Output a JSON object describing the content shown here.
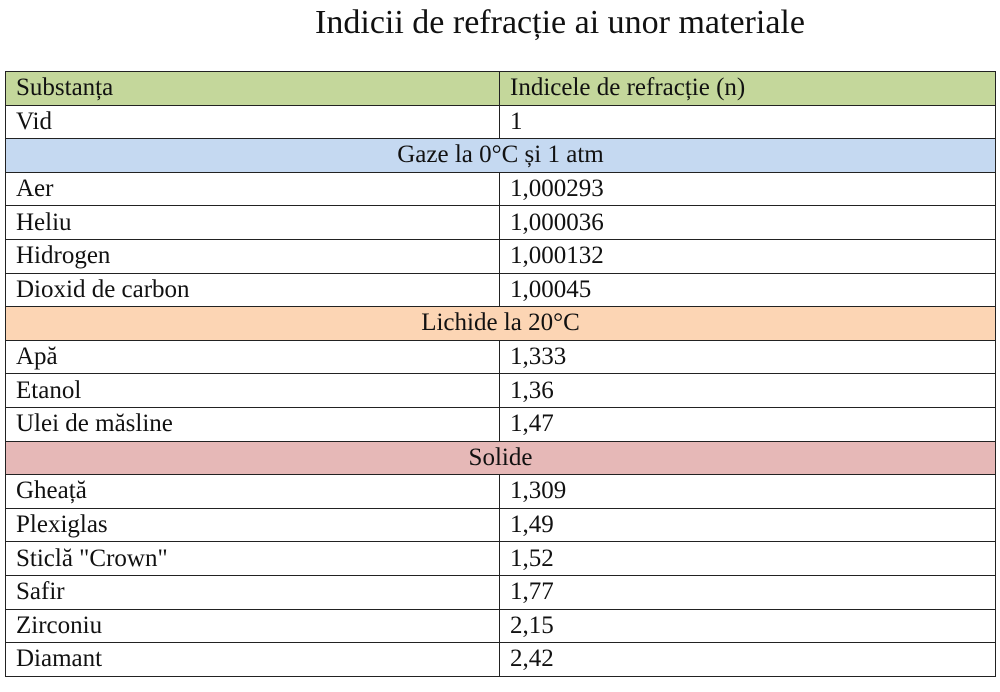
{
  "title": "Indicii de refracție ai unor materiale",
  "table": {
    "header": {
      "col1": "Substanța",
      "col2": "Indicele de refracție (n)"
    },
    "vacuum": {
      "name": "Vid",
      "n": "1"
    },
    "sections": [
      {
        "label": "Gaze la 0°C și 1 atm",
        "color": "#c5d9f1",
        "rows": [
          {
            "name": "Aer",
            "n": "1,000293"
          },
          {
            "name": "Heliu",
            "n": "1,000036"
          },
          {
            "name": "Hidrogen",
            "n": "1,000132"
          },
          {
            "name": "Dioxid de carbon",
            "n": "1,00045"
          }
        ]
      },
      {
        "label": "Lichide la 20°C",
        "color": "#fcd5b4",
        "rows": [
          {
            "name": "Apă",
            "n": "1,333"
          },
          {
            "name": "Etanol",
            "n": "1,36"
          },
          {
            "name": "Ulei de măsline",
            "n": "1,47"
          }
        ]
      },
      {
        "label": "Solide",
        "color": "#e6b8b7",
        "rows": [
          {
            "name": "Gheață",
            "n": "1,309"
          },
          {
            "name": "Plexiglas",
            "n": "1,49"
          },
          {
            "name": "Sticlă \"Crown\"",
            "n": "1,52"
          },
          {
            "name": "Safir",
            "n": "1,77"
          },
          {
            "name": "Zirconiu",
            "n": "2,15"
          },
          {
            "name": "Diamant",
            "n": "2,42"
          }
        ]
      }
    ],
    "header_color": "#c4d79b"
  }
}
